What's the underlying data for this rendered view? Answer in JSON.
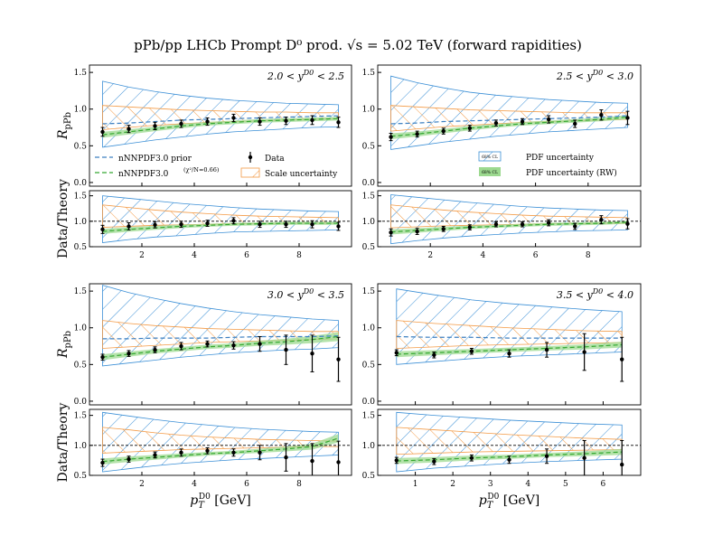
{
  "figure_title": "pPb/pp LHCb Prompt D⁰ prod. √s = 5.02 TeV (forward rapidities)",
  "colors": {
    "prior": "#3c7fc0",
    "rw": "#35a830",
    "rw_band": "#9cd98f",
    "pdf_hatch": "#3b8fd6",
    "scale_hatch": "#f39a45",
    "data": "#000000"
  },
  "legend": {
    "prior": "nNNPDF3.0 prior",
    "rw": "nNNPDF3.0",
    "rw_sup": "(χ²/N=0.66)",
    "data": "Data",
    "scale": "Scale uncertainty",
    "pdf_unc": "PDF uncertainty",
    "pdf_unc_rw": "PDF uncertainty (RW)",
    "cl": "68% CL"
  },
  "chart_data": [
    {
      "type": "line",
      "panel": "top-left",
      "rapidity_label": "2.0 < y^D0 < 2.5",
      "ylabel_top": "R_pPb",
      "ylabel_bottom": "Data/Theory",
      "xlabel": "",
      "xlim": [
        0,
        10
      ],
      "ylim_top": [
        -0.05,
        1.6
      ],
      "ylim_bottom": [
        0.5,
        1.6
      ],
      "xticks": [
        2,
        4,
        6,
        8
      ],
      "yticks_top": [
        0.0,
        0.5,
        1.0,
        1.5
      ],
      "yticks_bottom": [
        0.5,
        1.0,
        1.5
      ],
      "pt_edges": [
        0.5,
        1,
        2,
        3,
        4,
        5,
        6,
        7,
        8,
        9,
        10
      ],
      "data": {
        "x": [
          0.5,
          1.5,
          2.5,
          3.5,
          4.5,
          5.5,
          6.5,
          7.5,
          8.5,
          9.5
        ],
        "y": [
          0.69,
          0.73,
          0.77,
          0.8,
          0.83,
          0.88,
          0.83,
          0.84,
          0.85,
          0.82
        ],
        "err": [
          0.06,
          0.05,
          0.05,
          0.05,
          0.05,
          0.05,
          0.05,
          0.05,
          0.06,
          0.07
        ]
      },
      "prior": {
        "central": [
          0.8,
          0.81,
          0.83,
          0.85,
          0.86,
          0.87,
          0.88,
          0.89,
          0.9,
          0.91
        ],
        "lo": [
          0.48,
          0.53,
          0.58,
          0.62,
          0.66,
          0.69,
          0.71,
          0.73,
          0.75,
          0.76
        ],
        "hi": [
          1.38,
          1.3,
          1.24,
          1.19,
          1.15,
          1.12,
          1.1,
          1.08,
          1.07,
          1.06
        ]
      },
      "scale": {
        "lo": [
          0.72,
          0.75,
          0.78,
          0.8,
          0.82,
          0.83,
          0.84,
          0.85,
          0.86,
          0.87
        ],
        "hi": [
          1.05,
          1.03,
          1.01,
          0.99,
          0.98,
          0.97,
          0.96,
          0.96,
          0.95,
          0.95
        ]
      },
      "rw": {
        "central": [
          0.65,
          0.69,
          0.73,
          0.77,
          0.8,
          0.82,
          0.84,
          0.85,
          0.86,
          0.87
        ],
        "half_width": [
          0.04,
          0.035,
          0.03,
          0.03,
          0.025,
          0.025,
          0.025,
          0.025,
          0.025,
          0.025
        ]
      },
      "ratio": {
        "data_y": [
          0.84,
          0.9,
          0.93,
          0.94,
          0.96,
          1.01,
          0.94,
          0.94,
          0.94,
          0.9
        ],
        "data_err": [
          0.08,
          0.07,
          0.06,
          0.06,
          0.06,
          0.06,
          0.06,
          0.06,
          0.07,
          0.08
        ],
        "pdf_lo": [
          0.58,
          0.64,
          0.69,
          0.72,
          0.76,
          0.79,
          0.8,
          0.81,
          0.82,
          0.83
        ],
        "pdf_hi": [
          1.5,
          1.45,
          1.4,
          1.35,
          1.31,
          1.27,
          1.24,
          1.22,
          1.2,
          1.19
        ],
        "scale_lo": [
          0.88,
          0.9,
          0.92,
          0.93,
          0.94,
          0.95,
          0.95,
          0.96,
          0.96,
          0.96
        ],
        "scale_hi": [
          1.32,
          1.27,
          1.22,
          1.18,
          1.15,
          1.12,
          1.1,
          1.09,
          1.08,
          1.07
        ],
        "rw_central": [
          0.8,
          0.84,
          0.87,
          0.9,
          0.92,
          0.94,
          0.95,
          0.96,
          0.96,
          0.96
        ],
        "rw_half": [
          0.05,
          0.045,
          0.04,
          0.035,
          0.03,
          0.03,
          0.03,
          0.03,
          0.03,
          0.03
        ]
      },
      "legend_side": "left"
    },
    {
      "type": "line",
      "panel": "top-right",
      "rapidity_label": "2.5 < y^D0 < 3.0",
      "xlabel": "",
      "xlim": [
        0,
        10
      ],
      "ylim_top": [
        -0.05,
        1.6
      ],
      "ylim_bottom": [
        0.5,
        1.6
      ],
      "xticks": [
        2,
        4,
        6,
        8
      ],
      "yticks_top": [
        0.0,
        0.5,
        1.0,
        1.5
      ],
      "yticks_bottom": [
        0.5,
        1.0,
        1.5
      ],
      "pt_edges": [
        0.5,
        1,
        2,
        3,
        4,
        5,
        6,
        7,
        8,
        9,
        10
      ],
      "data": {
        "x": [
          0.5,
          1.5,
          2.5,
          3.5,
          4.5,
          5.5,
          6.5,
          7.5,
          8.5,
          9.5
        ],
        "y": [
          0.62,
          0.66,
          0.7,
          0.74,
          0.81,
          0.83,
          0.86,
          0.8,
          0.92,
          0.88
        ],
        "err": [
          0.05,
          0.04,
          0.04,
          0.04,
          0.04,
          0.04,
          0.05,
          0.05,
          0.07,
          0.09
        ]
      },
      "prior": {
        "central": [
          0.8,
          0.81,
          0.83,
          0.84,
          0.85,
          0.86,
          0.87,
          0.88,
          0.89,
          0.91
        ],
        "lo": [
          0.45,
          0.5,
          0.55,
          0.59,
          0.63,
          0.66,
          0.69,
          0.71,
          0.73,
          0.75
        ],
        "hi": [
          1.45,
          1.36,
          1.29,
          1.23,
          1.19,
          1.16,
          1.13,
          1.11,
          1.09,
          1.08
        ]
      },
      "scale": {
        "lo": [
          0.7,
          0.73,
          0.76,
          0.78,
          0.8,
          0.82,
          0.83,
          0.84,
          0.85,
          0.86
        ],
        "hi": [
          1.05,
          1.03,
          1.01,
          0.99,
          0.98,
          0.97,
          0.96,
          0.95,
          0.95,
          0.95
        ]
      },
      "rw": {
        "central": [
          0.63,
          0.66,
          0.7,
          0.74,
          0.77,
          0.8,
          0.82,
          0.84,
          0.86,
          0.89
        ],
        "half_width": [
          0.04,
          0.035,
          0.03,
          0.03,
          0.025,
          0.025,
          0.025,
          0.025,
          0.025,
          0.03
        ]
      },
      "ratio": {
        "data_y": [
          0.78,
          0.8,
          0.85,
          0.88,
          0.94,
          0.94,
          0.97,
          0.9,
          1.03,
          0.95
        ],
        "data_err": [
          0.07,
          0.06,
          0.05,
          0.05,
          0.05,
          0.05,
          0.06,
          0.06,
          0.08,
          0.1
        ],
        "pdf_lo": [
          0.56,
          0.62,
          0.67,
          0.71,
          0.74,
          0.77,
          0.79,
          0.81,
          0.82,
          0.83
        ],
        "pdf_hi": [
          1.52,
          1.47,
          1.42,
          1.37,
          1.33,
          1.29,
          1.26,
          1.24,
          1.22,
          1.21
        ],
        "scale_lo": [
          0.87,
          0.89,
          0.91,
          0.92,
          0.93,
          0.94,
          0.95,
          0.95,
          0.96,
          0.96
        ],
        "scale_hi": [
          1.32,
          1.27,
          1.22,
          1.18,
          1.15,
          1.12,
          1.1,
          1.09,
          1.08,
          1.07
        ],
        "rw_central": [
          0.79,
          0.82,
          0.85,
          0.88,
          0.9,
          0.92,
          0.94,
          0.95,
          0.96,
          0.98
        ],
        "rw_half": [
          0.05,
          0.045,
          0.04,
          0.035,
          0.03,
          0.03,
          0.03,
          0.03,
          0.03,
          0.03
        ]
      },
      "legend_side": "right"
    },
    {
      "type": "line",
      "panel": "bottom-left",
      "rapidity_label": "3.0 < y^D0 < 3.5",
      "xlabel": "p_T^D0 [GeV]",
      "xlim": [
        0,
        10
      ],
      "ylim_top": [
        -0.05,
        1.6
      ],
      "ylim_bottom": [
        0.5,
        1.6
      ],
      "xticks": [
        2,
        4,
        6,
        8
      ],
      "yticks_top": [
        0.0,
        0.5,
        1.0,
        1.5
      ],
      "yticks_bottom": [
        0.5,
        1.0,
        1.5
      ],
      "pt_edges": [
        0.5,
        1,
        2,
        3,
        4,
        5,
        6,
        7,
        8,
        9,
        10
      ],
      "data": {
        "x": [
          0.5,
          1.5,
          2.5,
          3.5,
          4.5,
          5.5,
          6.5,
          7.5,
          8.5,
          9.5
        ],
        "y": [
          0.6,
          0.65,
          0.7,
          0.75,
          0.78,
          0.76,
          0.78,
          0.7,
          0.65,
          0.57
        ],
        "err": [
          0.04,
          0.04,
          0.04,
          0.05,
          0.04,
          0.05,
          0.1,
          0.2,
          0.25,
          0.3
        ]
      },
      "prior": {
        "central": [
          0.85,
          0.85,
          0.86,
          0.86,
          0.86,
          0.87,
          0.88,
          0.88,
          0.88,
          0.89
        ],
        "lo": [
          0.48,
          0.52,
          0.56,
          0.6,
          0.63,
          0.66,
          0.68,
          0.7,
          0.71,
          0.73
        ],
        "hi": [
          1.58,
          1.48,
          1.4,
          1.33,
          1.27,
          1.22,
          1.18,
          1.15,
          1.12,
          1.1
        ]
      },
      "scale": {
        "lo": [
          0.72,
          0.74,
          0.76,
          0.78,
          0.8,
          0.81,
          0.82,
          0.83,
          0.84,
          0.85
        ],
        "hi": [
          1.1,
          1.06,
          1.03,
          1.01,
          0.99,
          0.98,
          0.97,
          0.96,
          0.95,
          0.95
        ]
      },
      "rw": {
        "central": [
          0.6,
          0.64,
          0.68,
          0.71,
          0.74,
          0.76,
          0.79,
          0.81,
          0.84,
          0.88
        ],
        "half_width": [
          0.04,
          0.035,
          0.03,
          0.03,
          0.03,
          0.03,
          0.035,
          0.04,
          0.05,
          0.06
        ]
      },
      "ratio": {
        "data_y": [
          0.71,
          0.77,
          0.84,
          0.88,
          0.91,
          0.88,
          0.88,
          0.8,
          0.74,
          0.72
        ],
        "data_err": [
          0.06,
          0.05,
          0.05,
          0.06,
          0.05,
          0.06,
          0.12,
          0.23,
          0.29,
          0.35
        ],
        "pdf_lo": [
          0.56,
          0.61,
          0.66,
          0.7,
          0.73,
          0.76,
          0.78,
          0.8,
          0.82,
          0.84
        ],
        "pdf_hi": [
          1.55,
          1.49,
          1.43,
          1.38,
          1.34,
          1.3,
          1.27,
          1.25,
          1.23,
          1.22
        ],
        "scale_lo": [
          0.87,
          0.89,
          0.91,
          0.93,
          0.94,
          0.95,
          0.96,
          0.97,
          0.98,
          0.98
        ],
        "scale_hi": [
          1.3,
          1.26,
          1.21,
          1.17,
          1.14,
          1.12,
          1.1,
          1.09,
          1.08,
          1.07
        ],
        "rw_central": [
          0.73,
          0.77,
          0.8,
          0.83,
          0.86,
          0.88,
          0.91,
          0.94,
          0.98,
          1.12
        ],
        "rw_half": [
          0.05,
          0.045,
          0.04,
          0.035,
          0.03,
          0.03,
          0.035,
          0.04,
          0.05,
          0.07
        ]
      },
      "legend_side": "none"
    },
    {
      "type": "line",
      "panel": "bottom-right",
      "rapidity_label": "3.5 < y^D0 < 4.0",
      "xlabel": "p_T^D0 [GeV]",
      "xlim": [
        0,
        7
      ],
      "ylim_top": [
        -0.05,
        1.6
      ],
      "ylim_bottom": [
        0.5,
        1.6
      ],
      "xticks": [
        1,
        2,
        3,
        4,
        5,
        6
      ],
      "yticks_top": [
        0.0,
        0.5,
        1.0,
        1.5
      ],
      "yticks_bottom": [
        0.5,
        1.0,
        1.5
      ],
      "pt_edges": [
        0.5,
        1,
        2,
        3,
        4,
        5,
        6,
        7
      ],
      "data": {
        "x": [
          0.5,
          1.5,
          2.5,
          3.5,
          4.5,
          5.5,
          6.5
        ],
        "y": [
          0.66,
          0.63,
          0.68,
          0.65,
          0.7,
          0.67,
          0.57
        ],
        "err": [
          0.04,
          0.04,
          0.04,
          0.05,
          0.1,
          0.25,
          0.3
        ]
      },
      "prior": {
        "central": [
          0.88,
          0.87,
          0.87,
          0.86,
          0.86,
          0.86,
          0.86
        ],
        "lo": [
          0.5,
          0.54,
          0.58,
          0.61,
          0.63,
          0.65,
          0.67
        ],
        "hi": [
          1.53,
          1.45,
          1.38,
          1.33,
          1.29,
          1.25,
          1.22
        ]
      },
      "scale": {
        "lo": [
          0.72,
          0.74,
          0.76,
          0.77,
          0.78,
          0.79,
          0.8
        ],
        "hi": [
          1.1,
          1.06,
          1.03,
          1.0,
          0.98,
          0.96,
          0.95
        ]
      },
      "rw": {
        "central": [
          0.64,
          0.66,
          0.68,
          0.7,
          0.72,
          0.74,
          0.77
        ],
        "half_width": [
          0.04,
          0.035,
          0.03,
          0.03,
          0.03,
          0.035,
          0.04
        ]
      },
      "ratio": {
        "data_y": [
          0.75,
          0.73,
          0.79,
          0.76,
          0.82,
          0.79,
          0.68
        ],
        "data_err": [
          0.05,
          0.05,
          0.05,
          0.06,
          0.12,
          0.29,
          0.4
        ],
        "pdf_lo": [
          0.56,
          0.62,
          0.66,
          0.7,
          0.73,
          0.75,
          0.77
        ],
        "pdf_hi": [
          1.55,
          1.5,
          1.46,
          1.42,
          1.39,
          1.36,
          1.34
        ],
        "scale_lo": [
          0.85,
          0.87,
          0.89,
          0.9,
          0.91,
          0.92,
          0.93
        ],
        "scale_hi": [
          1.3,
          1.26,
          1.22,
          1.18,
          1.15,
          1.12,
          1.1
        ],
        "rw_central": [
          0.74,
          0.76,
          0.79,
          0.81,
          0.84,
          0.86,
          0.89
        ],
        "rw_half": [
          0.05,
          0.045,
          0.04,
          0.035,
          0.035,
          0.04,
          0.05
        ]
      },
      "legend_side": "none"
    }
  ]
}
